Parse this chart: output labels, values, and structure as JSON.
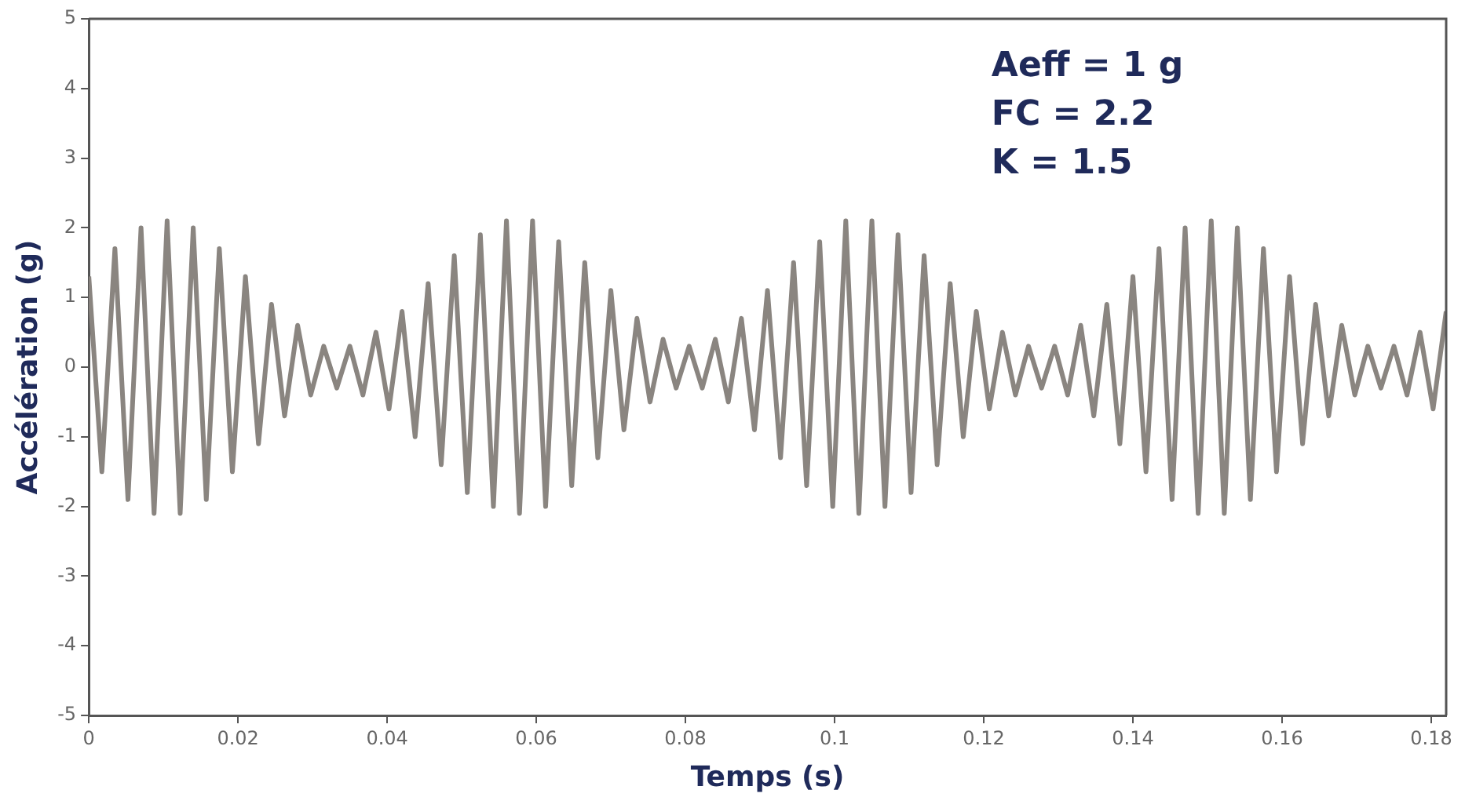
{
  "chart_data": {
    "type": "line",
    "xlabel": "Temps (s)",
    "ylabel": "Accélération (g)",
    "annotations": [
      "Aeff = 1 g",
      "FC = 2.2",
      "K = 1.5"
    ],
    "x": [
      0,
      0.00175,
      0.0035,
      0.00525,
      0.007,
      0.00875,
      0.0105,
      0.01225,
      0.014,
      0.01575,
      0.0175,
      0.01925,
      0.021,
      0.02275,
      0.0245,
      0.02625,
      0.028,
      0.02975,
      0.0315,
      0.03325,
      0.035,
      0.03675,
      0.0385,
      0.04025,
      0.042,
      0.04375,
      0.0455,
      0.04725,
      0.049,
      0.05075,
      0.0525,
      0.05425,
      0.056,
      0.05775,
      0.0595,
      0.06125,
      0.063,
      0.06475,
      0.0665,
      0.06825,
      0.07,
      0.07175,
      0.0735,
      0.07525,
      0.077,
      0.07875,
      0.0805,
      0.08225,
      0.084,
      0.08575,
      0.0875,
      0.08925,
      0.091,
      0.09275,
      0.0945,
      0.09625,
      0.098,
      0.09975,
      0.1015,
      0.10325,
      0.105,
      0.10675,
      0.1085,
      0.11025,
      0.112,
      0.11375,
      0.1155,
      0.11725,
      0.119,
      0.12075,
      0.1225,
      0.12425,
      0.126,
      0.12775,
      0.1295,
      0.13125,
      0.133,
      0.13475,
      0.1365,
      0.13825,
      0.14,
      0.14175,
      0.1435,
      0.14525,
      0.147,
      0.14875,
      0.1505,
      0.15225,
      0.154,
      0.15575,
      0.1575,
      0.15925,
      0.161,
      0.16275,
      0.1645,
      0.16625,
      0.168,
      0.16975,
      0.1715,
      0.17325,
      0.175,
      0.17675,
      0.1785,
      0.18025,
      0.182
    ],
    "series": [
      {
        "color": "#8a8580",
        "values": [
          1.3,
          -1.5,
          1.7,
          -1.9,
          2.0,
          -2.1,
          2.1,
          -2.1,
          2.0,
          -1.9,
          1.7,
          -1.5,
          1.3,
          -1.1,
          0.9,
          -0.7,
          0.6,
          -0.4,
          0.3,
          -0.3,
          0.3,
          -0.4,
          0.5,
          -0.6,
          0.8,
          -1.0,
          1.2,
          -1.4,
          1.6,
          -1.8,
          1.9,
          -2.0,
          2.1,
          -2.1,
          2.1,
          -2.0,
          1.8,
          -1.7,
          1.5,
          -1.3,
          1.1,
          -0.9,
          0.7,
          -0.5,
          0.4,
          -0.3,
          0.3,
          -0.3,
          0.4,
          -0.5,
          0.7,
          -0.9,
          1.1,
          -1.3,
          1.5,
          -1.7,
          1.8,
          -2.0,
          2.1,
          -2.1,
          2.1,
          -2.0,
          1.9,
          -1.8,
          1.6,
          -1.4,
          1.2,
          -1.0,
          0.8,
          -0.6,
          0.5,
          -0.4,
          0.3,
          -0.3,
          0.3,
          -0.4,
          0.6,
          -0.7,
          0.9,
          -1.1,
          1.3,
          -1.5,
          1.7,
          -1.9,
          2.0,
          -2.1,
          2.1,
          -2.1,
          2.0,
          -1.9,
          1.7,
          -1.5,
          1.3,
          -1.1,
          0.9,
          -0.7,
          0.6,
          -0.4,
          0.3,
          -0.3,
          0.3,
          -0.4,
          0.5,
          -0.6,
          0.8
        ]
      }
    ],
    "xlim": [
      0,
      0.182
    ],
    "xticks": [
      0,
      0.02,
      0.04,
      0.06,
      0.08,
      0.1,
      0.12,
      0.14,
      0.16,
      0.18
    ],
    "ylim": [
      -5,
      5
    ],
    "yticks": [
      -5,
      -4,
      -3,
      -2,
      -1,
      0,
      1,
      2,
      3,
      4,
      5
    ],
    "grid": false,
    "legend": false,
    "marker": "none",
    "line_style": "solid"
  }
}
